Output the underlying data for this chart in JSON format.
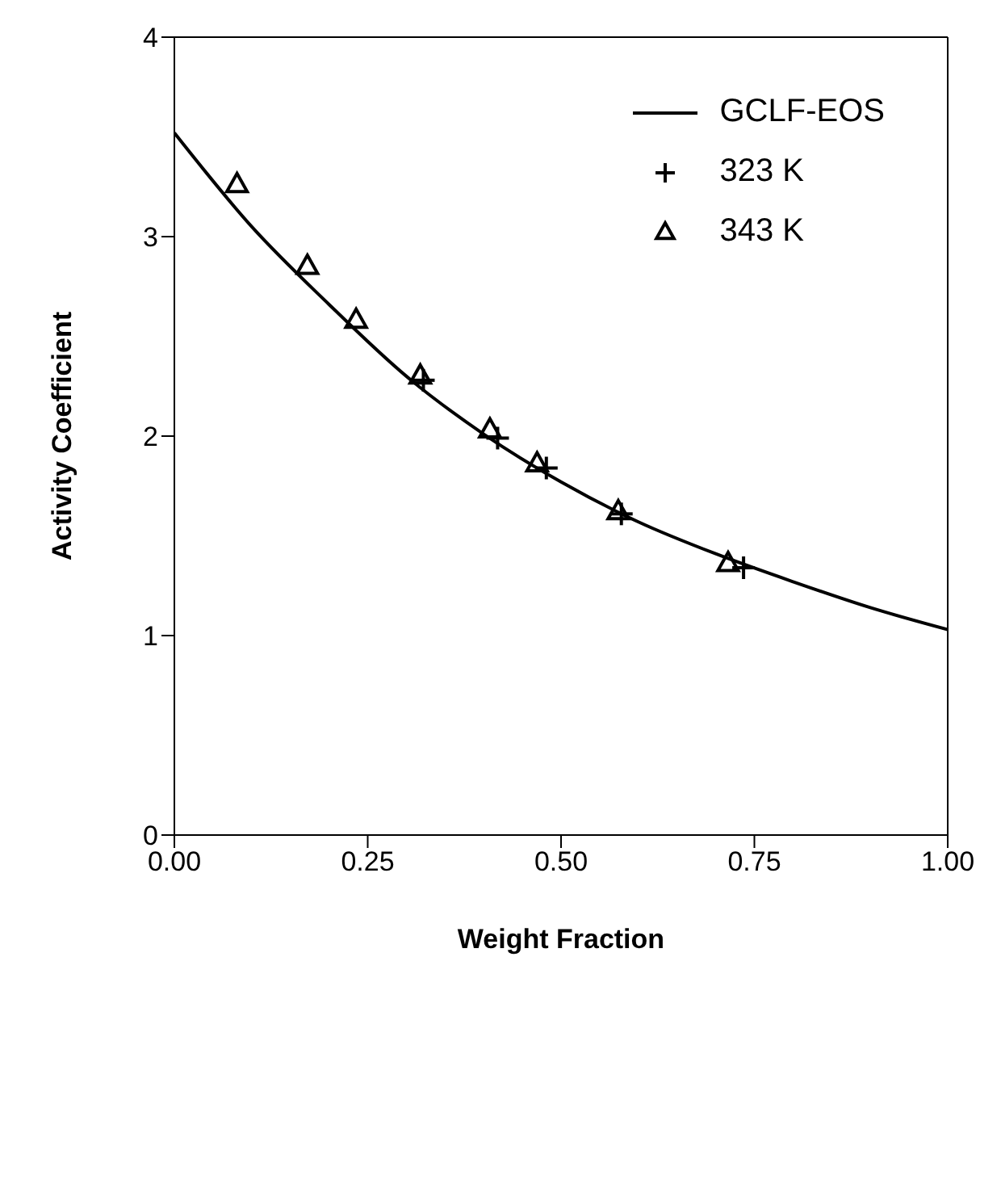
{
  "chart_data": {
    "type": "scatter",
    "xlabel": "Weight Fraction",
    "ylabel": "Activity Coefficient",
    "xlim": [
      0,
      1
    ],
    "xticks": [
      {
        "value": 0,
        "label": "0.00"
      },
      {
        "value": 0.25,
        "label": "0.25"
      },
      {
        "value": 0.5,
        "label": "0.50"
      },
      {
        "value": 0.75,
        "label": "0.75"
      },
      {
        "value": 1,
        "label": "1.00"
      }
    ],
    "ylim": [
      0,
      4
    ],
    "yticks": [
      0,
      1,
      2,
      3,
      4
    ],
    "grid": false,
    "legend": "top right",
    "series": [
      {
        "name": "GCLF-EOS",
        "type": "line",
        "color": "#000000",
        "marker": "none",
        "line_style": "solid",
        "x": [
          0,
          0.1,
          0.2,
          0.3,
          0.4,
          0.5,
          0.6,
          0.7,
          0.8,
          0.9,
          1.0
        ],
        "values": [
          3.52,
          3.05,
          2.66,
          2.3,
          2.01,
          1.77,
          1.57,
          1.41,
          1.27,
          1.14,
          1.03
        ]
      },
      {
        "name": "323 K",
        "color": "#000000",
        "marker": "cross",
        "x": [
          0.322,
          0.418,
          0.481,
          0.578,
          0.736
        ],
        "values": [
          2.28,
          1.99,
          1.84,
          1.61,
          1.34
        ]
      },
      {
        "name": "343 K",
        "color": "#000000",
        "marker": "triangle",
        "x": [
          0.081,
          0.172,
          0.235,
          0.318,
          0.408,
          0.469,
          0.574,
          0.716
        ],
        "values": [
          3.26,
          2.85,
          2.58,
          2.3,
          2.03,
          1.86,
          1.62,
          1.36
        ]
      }
    ]
  }
}
